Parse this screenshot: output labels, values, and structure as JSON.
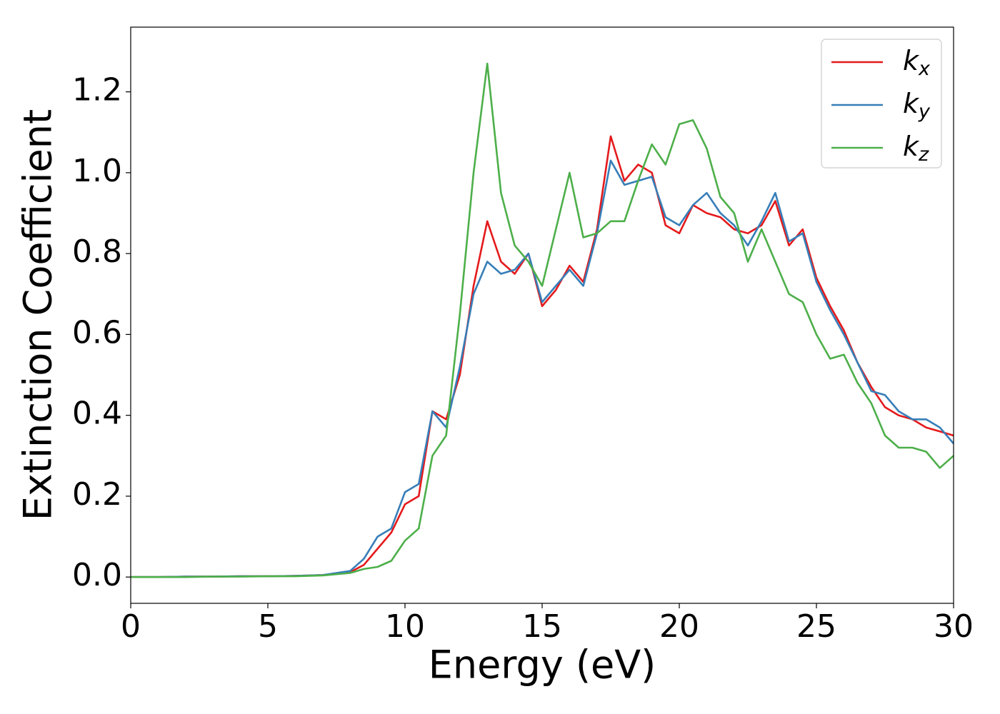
{
  "chart_data": {
    "type": "line",
    "xlabel": "Energy (eV)",
    "ylabel": "Extinction Coefficient",
    "x": [
      0,
      1,
      2,
      3,
      4,
      5,
      6,
      7,
      8,
      8.5,
      9,
      9.5,
      10,
      10.5,
      11,
      11.5,
      12,
      12.5,
      13,
      13.5,
      14,
      14.5,
      15,
      15.5,
      16,
      16.5,
      17,
      17.5,
      18,
      18.5,
      19,
      19.5,
      20,
      20.5,
      21,
      21.5,
      22,
      22.5,
      23,
      23.5,
      24,
      24.5,
      25,
      25.5,
      26,
      26.5,
      27,
      27.5,
      28,
      28.5,
      29,
      29.5,
      30
    ],
    "series": [
      {
        "name": "kx",
        "color": "#e41a1c",
        "values": [
          0,
          0,
          0.001,
          0.001,
          0.002,
          0.002,
          0.003,
          0.005,
          0.012,
          0.03,
          0.07,
          0.11,
          0.18,
          0.2,
          0.41,
          0.39,
          0.5,
          0.72,
          0.88,
          0.78,
          0.75,
          0.8,
          0.67,
          0.71,
          0.77,
          0.73,
          0.86,
          1.09,
          0.98,
          1.02,
          1.0,
          0.87,
          0.85,
          0.92,
          0.9,
          0.89,
          0.86,
          0.85,
          0.87,
          0.93,
          0.82,
          0.86,
          0.74,
          0.67,
          0.61,
          0.53,
          0.47,
          0.42,
          0.4,
          0.39,
          0.37,
          0.36,
          0.35
        ]
      },
      {
        "name": "ky",
        "color": "#377eb8",
        "values": [
          0,
          0,
          0.001,
          0.001,
          0.002,
          0.002,
          0.003,
          0.005,
          0.015,
          0.045,
          0.1,
          0.12,
          0.21,
          0.23,
          0.41,
          0.37,
          0.52,
          0.7,
          0.78,
          0.75,
          0.76,
          0.8,
          0.68,
          0.72,
          0.76,
          0.72,
          0.85,
          1.03,
          0.97,
          0.98,
          0.99,
          0.89,
          0.87,
          0.92,
          0.95,
          0.9,
          0.87,
          0.82,
          0.88,
          0.95,
          0.83,
          0.85,
          0.73,
          0.66,
          0.6,
          0.53,
          0.46,
          0.45,
          0.41,
          0.39,
          0.39,
          0.37,
          0.33
        ]
      },
      {
        "name": "kz",
        "color": "#4daf4a",
        "values": [
          0,
          0,
          0,
          0.001,
          0.001,
          0.002,
          0.002,
          0.004,
          0.01,
          0.02,
          0.025,
          0.04,
          0.09,
          0.12,
          0.3,
          0.35,
          0.65,
          1.0,
          1.27,
          0.95,
          0.82,
          0.78,
          0.72,
          0.86,
          1.0,
          0.84,
          0.85,
          0.88,
          0.88,
          0.98,
          1.07,
          1.02,
          1.12,
          1.13,
          1.06,
          0.94,
          0.9,
          0.78,
          0.86,
          0.78,
          0.7,
          0.68,
          0.6,
          0.54,
          0.55,
          0.48,
          0.43,
          0.35,
          0.32,
          0.32,
          0.31,
          0.27,
          0.3
        ]
      }
    ],
    "xlim": [
      0,
      30
    ],
    "xticks": [
      0,
      5,
      10,
      15,
      20,
      25,
      30
    ],
    "ylim": [
      -0.065,
      1.36
    ],
    "yticks": [
      {
        "value": 0,
        "label": "0.0"
      },
      0.2,
      0.4,
      0.6,
      0.8,
      {
        "value": 1,
        "label": "1.0"
      },
      1.2
    ],
    "legend": "upper right",
    "grid": false
  }
}
